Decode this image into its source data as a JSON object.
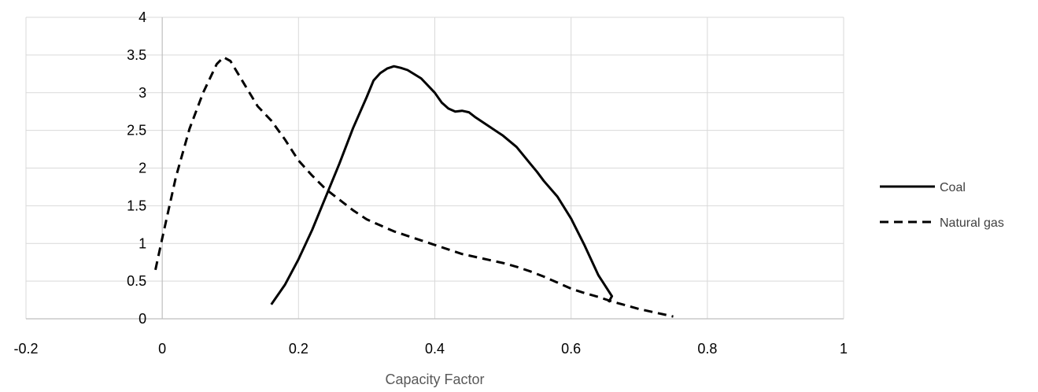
{
  "chart_data": {
    "type": "line",
    "title": "",
    "xlabel": "Capacity Factor",
    "ylabel": "",
    "xlim": [
      -0.2,
      1
    ],
    "ylim": [
      0,
      4
    ],
    "x_ticks": [
      -0.2,
      0,
      0.2,
      0.4,
      0.6,
      0.8,
      1
    ],
    "x_tick_labels": [
      "-0.2",
      "0",
      "0.2",
      "0.4",
      "0.6",
      "0.8",
      "1"
    ],
    "y_ticks": [
      0,
      0.5,
      1,
      1.5,
      2,
      2.5,
      3,
      3.5,
      4
    ],
    "y_tick_labels": [
      "0",
      "0.5",
      "1",
      "1.5",
      "2",
      "2.5",
      "3",
      "3.5",
      "4"
    ],
    "grid": true,
    "legend_position": "right",
    "series": [
      {
        "name": "Coal",
        "style": "solid",
        "color": "#000000",
        "points": [
          [
            0.16,
            0.19
          ],
          [
            0.18,
            0.45
          ],
          [
            0.2,
            0.79
          ],
          [
            0.22,
            1.18
          ],
          [
            0.24,
            1.62
          ],
          [
            0.26,
            2.06
          ],
          [
            0.28,
            2.53
          ],
          [
            0.3,
            2.94
          ],
          [
            0.31,
            3.16
          ],
          [
            0.32,
            3.26
          ],
          [
            0.33,
            3.32
          ],
          [
            0.34,
            3.35
          ],
          [
            0.35,
            3.33
          ],
          [
            0.36,
            3.3
          ],
          [
            0.38,
            3.19
          ],
          [
            0.4,
            3.0
          ],
          [
            0.41,
            2.87
          ],
          [
            0.42,
            2.79
          ],
          [
            0.43,
            2.75
          ],
          [
            0.44,
            2.76
          ],
          [
            0.45,
            2.74
          ],
          [
            0.46,
            2.67
          ],
          [
            0.48,
            2.55
          ],
          [
            0.5,
            2.43
          ],
          [
            0.52,
            2.28
          ],
          [
            0.54,
            2.06
          ],
          [
            0.55,
            1.95
          ],
          [
            0.56,
            1.83
          ],
          [
            0.58,
            1.62
          ],
          [
            0.6,
            1.33
          ],
          [
            0.62,
            0.97
          ],
          [
            0.64,
            0.58
          ],
          [
            0.66,
            0.3
          ],
          [
            0.655,
            0.22
          ]
        ]
      },
      {
        "name": "Natural gas",
        "style": "dashed",
        "color": "#000000",
        "points": [
          [
            -0.01,
            0.65
          ],
          [
            0.0,
            1.07
          ],
          [
            0.02,
            1.88
          ],
          [
            0.04,
            2.52
          ],
          [
            0.06,
            3.0
          ],
          [
            0.08,
            3.38
          ],
          [
            0.09,
            3.47
          ],
          [
            0.1,
            3.42
          ],
          [
            0.12,
            3.12
          ],
          [
            0.14,
            2.82
          ],
          [
            0.16,
            2.63
          ],
          [
            0.18,
            2.38
          ],
          [
            0.2,
            2.1
          ],
          [
            0.22,
            1.9
          ],
          [
            0.24,
            1.72
          ],
          [
            0.26,
            1.58
          ],
          [
            0.28,
            1.44
          ],
          [
            0.3,
            1.32
          ],
          [
            0.32,
            1.24
          ],
          [
            0.34,
            1.16
          ],
          [
            0.36,
            1.1
          ],
          [
            0.38,
            1.04
          ],
          [
            0.4,
            0.98
          ],
          [
            0.42,
            0.92
          ],
          [
            0.44,
            0.86
          ],
          [
            0.46,
            0.82
          ],
          [
            0.48,
            0.78
          ],
          [
            0.5,
            0.74
          ],
          [
            0.52,
            0.69
          ],
          [
            0.54,
            0.63
          ],
          [
            0.56,
            0.56
          ],
          [
            0.58,
            0.48
          ],
          [
            0.6,
            0.4
          ],
          [
            0.62,
            0.34
          ],
          [
            0.64,
            0.29
          ],
          [
            0.66,
            0.23
          ],
          [
            0.68,
            0.18
          ],
          [
            0.7,
            0.13
          ],
          [
            0.72,
            0.09
          ],
          [
            0.74,
            0.05
          ],
          [
            0.75,
            0.03
          ]
        ]
      }
    ]
  }
}
